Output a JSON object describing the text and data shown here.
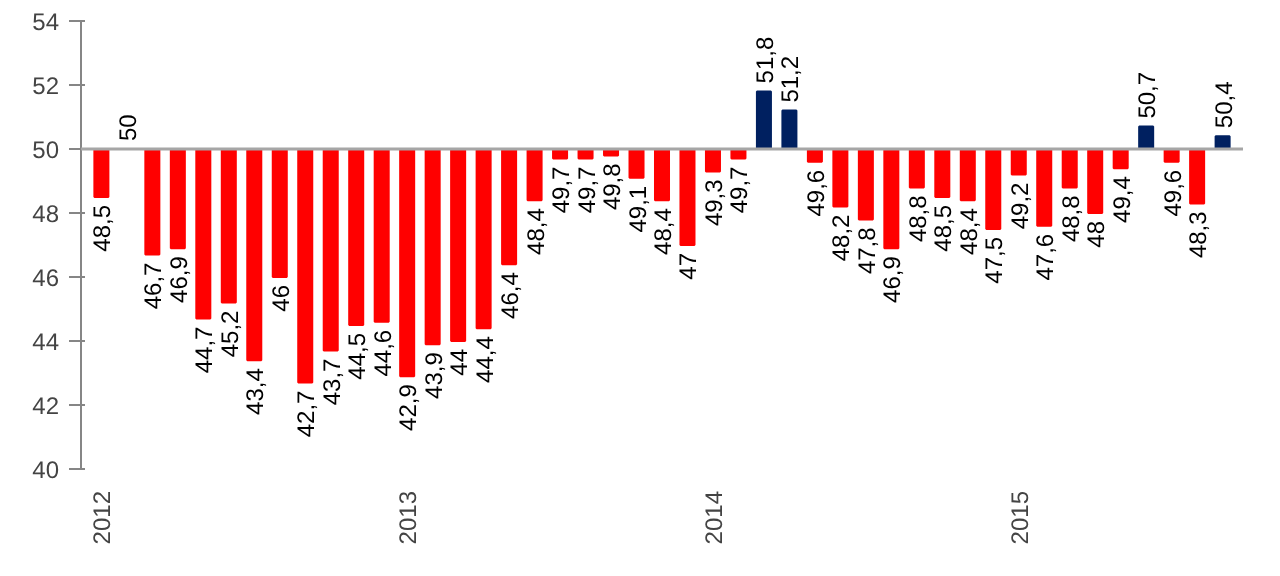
{
  "chart_data": {
    "type": "bar",
    "categories": [
      "2012",
      null,
      null,
      null,
      null,
      null,
      null,
      null,
      null,
      null,
      null,
      null,
      "2013",
      null,
      null,
      null,
      null,
      null,
      null,
      null,
      null,
      null,
      null,
      null,
      "2014",
      null,
      null,
      null,
      null,
      null,
      null,
      null,
      null,
      null,
      null,
      null,
      "2015",
      null,
      null,
      null,
      null,
      null,
      null,
      null,
      null
    ],
    "base": [
      50,
      50,
      50,
      50,
      50,
      50,
      50,
      50,
      50,
      50,
      50,
      50,
      50,
      50,
      50,
      50,
      50,
      50,
      50,
      50,
      50,
      50,
      50,
      50,
      50,
      50,
      50,
      50,
      50,
      50,
      50,
      50,
      50,
      50,
      50,
      50,
      50,
      50,
      50,
      50,
      50,
      50,
      50,
      50,
      50
    ],
    "values": [
      -1.5,
      0,
      -3.3,
      -3.1,
      -5.3,
      -4.8,
      -6.6,
      -4,
      -7.3,
      -6.3,
      -5.5,
      -5.4,
      -7.1,
      -6.1,
      -6,
      -5.6,
      -3.6,
      -1.6,
      -0.3,
      -0.3,
      -0.2,
      -0.9,
      -1.6,
      -3,
      -0.7,
      -0.3,
      1.8,
      1.2,
      -0.4,
      -1.8,
      -2.2,
      -3.1,
      -1.2,
      -1.5,
      -1.6,
      -2.5,
      -0.8,
      -2.4,
      -1.2,
      -2,
      -0.6,
      0.7,
      -0.4,
      -1.7,
      0.4
    ],
    "value_labels": [
      "48,5",
      "50",
      "46,7",
      "46,9",
      "44,7",
      "45,2",
      "43,4",
      "46",
      "42,7",
      "43,7",
      "44,5",
      "44,6",
      "42,9",
      "43,9",
      "44",
      "44,4",
      "46,4",
      "48,4",
      "49,7",
      "49,7",
      "49,8",
      "49,1",
      "48,4",
      "47",
      "49,3",
      "49,7",
      "51,8",
      "51,2",
      "49,6",
      "48,2",
      "47,8",
      "46,9",
      "48,8",
      "48,5",
      "48,4",
      "47,5",
      "49,2",
      "47,6",
      "48,8",
      "48",
      "49,4",
      "50,7",
      "49,6",
      "48,3",
      "50,4"
    ],
    "colors": [
      "#ff0000",
      "#ff0000",
      "#ff0000",
      "#ff0000",
      "#ff0000",
      "#ff0000",
      "#ff0000",
      "#ff0000",
      "#ff0000",
      "#ff0000",
      "#ff0000",
      "#ff0000",
      "#ff0000",
      "#ff0000",
      "#ff0000",
      "#ff0000",
      "#ff0000",
      "#ff0000",
      "#ff0000",
      "#ff0000",
      "#ff0000",
      "#ff0000",
      "#ff0000",
      "#ff0000",
      "#ff0000",
      "#ff0000",
      "#002060",
      "#002060",
      "#ff0000",
      "#ff0000",
      "#ff0000",
      "#ff0000",
      "#ff0000",
      "#ff0000",
      "#ff0000",
      "#ff0000",
      "#ff0000",
      "#ff0000",
      "#ff0000",
      "#ff0000",
      "#ff0000",
      "#002060",
      "#ff0000",
      "#ff0000",
      "#002060"
    ],
    "ylim": [
      40,
      54
    ],
    "yticks": [
      40,
      42,
      44,
      46,
      48,
      50,
      52,
      54
    ],
    "ref_lines": [
      {
        "axis": "y",
        "value": 50,
        "color": "#a6a6a6"
      }
    ],
    "grid": false
  }
}
